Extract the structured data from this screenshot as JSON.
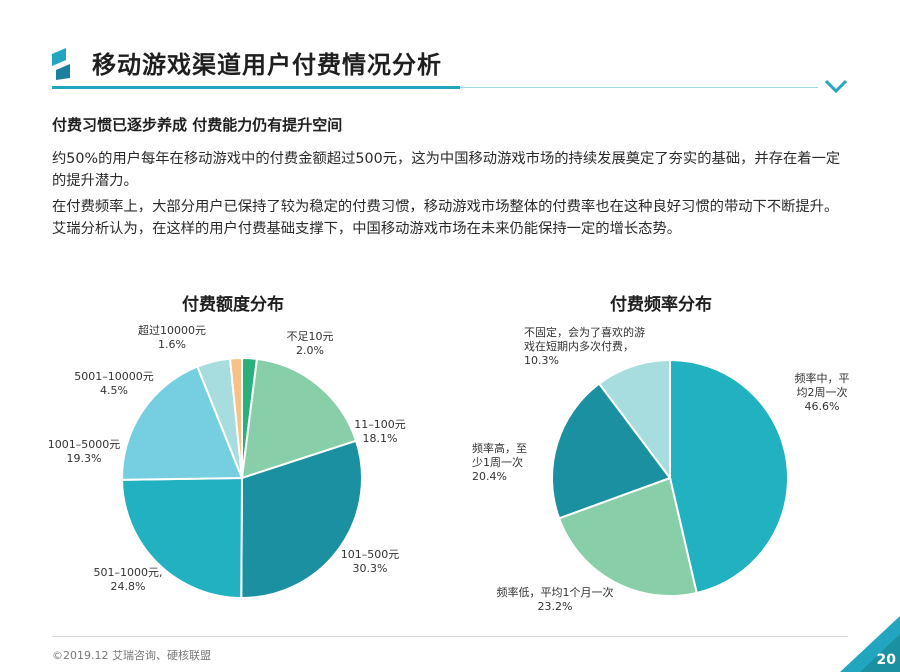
{
  "header": {
    "title": "移动游戏渠道用户付费情况分析"
  },
  "subtitle": "付费习惯已逐步养成 付费能力仍有提升空间",
  "paragraphs": [
    "约50%的用户每年在移动游戏中的付费金额超过500元，这为中国移动游戏市场的持续发展奠定了夯实的基础，并存在着一定的提升潜力。",
    "在付费频率上，大部分用户已保持了较为稳定的付费习惯，移动游戏市场整体的付费率也在这种良好习惯的带动下不断提升。艾瑞分析认为，在这样的用户付费基础支撑下，中国移动游戏市场在未来仍能保持一定的增长态势。"
  ],
  "chart_data": [
    {
      "type": "pie",
      "title": "付费额度分布",
      "slices": [
        {
          "label": "不足10元",
          "value": 2.0,
          "display": "2.0%",
          "color": "#2ab07a"
        },
        {
          "label": "11–100元",
          "value": 18.1,
          "display": "18.1%",
          "color": "#88cfa9"
        },
        {
          "label": "101–500元",
          "value": 30.3,
          "display": "30.3%",
          "color": "#1b90a0"
        },
        {
          "label": "501–1000元,",
          "value": 24.8,
          "display": "24.8%",
          "color": "#21b1c1"
        },
        {
          "label": "1001–5000元",
          "value": 19.3,
          "display": "19.3%",
          "color": "#75cfe0"
        },
        {
          "label": "5001–10000元",
          "value": 4.5,
          "display": "4.5%",
          "color": "#a8dde0"
        },
        {
          "label": "超过10000元",
          "value": 1.6,
          "display": "1.6%",
          "color": "#f6c287"
        }
      ]
    },
    {
      "type": "pie",
      "title": "付费频率分布",
      "slices": [
        {
          "label": "频率中，平均2周一次",
          "value": 46.6,
          "display": "46.6%",
          "color": "#21b1c1"
        },
        {
          "label": "频率低，平均1个月一次",
          "value": 23.2,
          "display": "23.2%",
          "color": "#88cfa9"
        },
        {
          "label": "频率高，至少1周一次",
          "value": 20.4,
          "display": "20.4%",
          "color": "#1b90a0"
        },
        {
          "label": "不固定，会为了喜欢的游戏在短期内多次付费，",
          "value": 10.3,
          "display": "10.3%",
          "color": "#a8dde0"
        }
      ]
    }
  ],
  "footer": {
    "source": "©2019.12  艾瑞咨询、硬核联盟",
    "page": "20"
  },
  "colors": {
    "accent": "#22a6c0",
    "accent_light": "#9fd6e0"
  }
}
